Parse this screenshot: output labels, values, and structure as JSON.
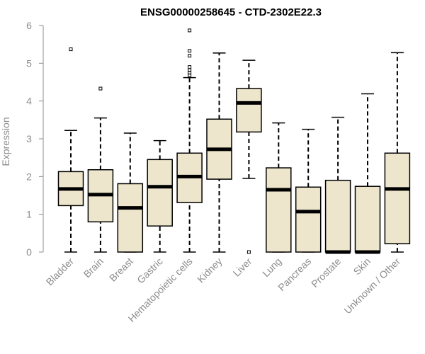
{
  "chart_data": {
    "type": "box",
    "title": "ENSG00000258645 - CTD-2302E22.3",
    "xlabel": "",
    "ylabel": "Expression",
    "ylim": [
      0,
      6
    ],
    "yticks": [
      0,
      1,
      2,
      3,
      4,
      5,
      6
    ],
    "grid": false,
    "box_fill": "#ede6cc",
    "categories": [
      "Bladder",
      "Brain",
      "Breast",
      "Gastric",
      "Hematopoietic cells",
      "Kidney",
      "Liver",
      "Lung",
      "Pancreas",
      "Prostate",
      "Skin",
      "Unknown / Other"
    ],
    "boxes": [
      {
        "min": 0.0,
        "q1": 1.23,
        "median": 1.67,
        "q3": 2.13,
        "max": 3.22,
        "outliers": [
          5.37
        ]
      },
      {
        "min": 0.0,
        "q1": 0.8,
        "median": 1.52,
        "q3": 2.18,
        "max": 3.55,
        "outliers": [
          4.33
        ]
      },
      {
        "min": 0.0,
        "q1": 0.0,
        "median": 1.17,
        "q3": 1.81,
        "max": 3.15,
        "outliers": []
      },
      {
        "min": 0.0,
        "q1": 0.69,
        "median": 1.73,
        "q3": 2.45,
        "max": 2.95,
        "outliers": []
      },
      {
        "min": 0.0,
        "q1": 1.31,
        "median": 2.0,
        "q3": 2.62,
        "max": 4.62,
        "outliers": [
          4.68,
          4.75,
          4.82,
          4.9,
          5.2,
          5.33,
          5.87
        ]
      },
      {
        "min": 0.0,
        "q1": 1.93,
        "median": 2.72,
        "q3": 3.52,
        "max": 5.27,
        "outliers": []
      },
      {
        "min": 1.95,
        "q1": 3.18,
        "median": 3.95,
        "q3": 4.33,
        "max": 5.08,
        "outliers": [
          0.0
        ]
      },
      {
        "min": 0.0,
        "q1": 0.0,
        "median": 1.65,
        "q3": 2.23,
        "max": 3.42,
        "outliers": []
      },
      {
        "min": 0.0,
        "q1": 0.0,
        "median": 1.07,
        "q3": 1.72,
        "max": 3.25,
        "outliers": []
      },
      {
        "min": 0.0,
        "q1": 0.0,
        "median": 0.0,
        "q3": 1.9,
        "max": 3.57,
        "outliers": []
      },
      {
        "min": 0.0,
        "q1": 0.0,
        "median": 0.0,
        "q3": 1.74,
        "max": 4.19,
        "outliers": []
      },
      {
        "min": 0.0,
        "q1": 0.22,
        "median": 1.67,
        "q3": 2.62,
        "max": 5.28,
        "outliers": []
      }
    ]
  }
}
